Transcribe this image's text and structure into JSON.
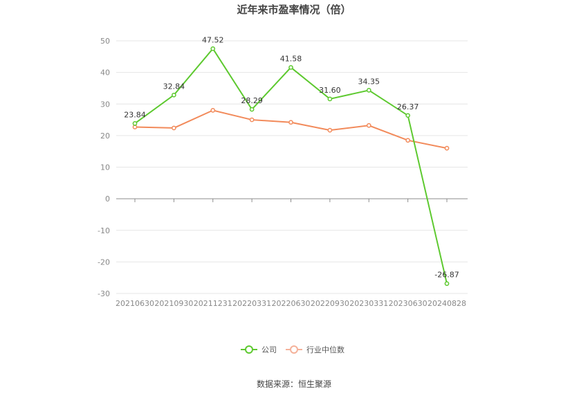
{
  "chart_data": {
    "type": "line",
    "title": "近年来市盈率情况（倍）",
    "categories": [
      "20210630",
      "20210930",
      "20211231",
      "20220331",
      "20220630",
      "20220930",
      "20230331",
      "20230630",
      "20240828"
    ],
    "ylim": [
      -30,
      50
    ],
    "yticks": [
      50,
      40,
      30,
      20,
      10,
      0,
      -10,
      -20,
      -30
    ],
    "grid": true,
    "legend_position": "bottom",
    "series": [
      {
        "name": "公司",
        "color": "#5dc92f",
        "show_labels": true,
        "values": [
          23.84,
          32.84,
          47.52,
          28.29,
          41.58,
          31.6,
          34.35,
          26.37,
          -26.87
        ],
        "labels": [
          "23.84",
          "32.84",
          "47.52",
          "28.29",
          "41.58",
          "31.60",
          "34.35",
          "26.37",
          "-26.87"
        ]
      },
      {
        "name": "行业中位数",
        "color": "#f28a5a",
        "show_labels": false,
        "values": [
          22.7,
          22.4,
          28.0,
          25.0,
          24.2,
          21.7,
          23.2,
          18.5,
          16.0
        ]
      }
    ],
    "source": "数据来源：恒生聚源"
  }
}
